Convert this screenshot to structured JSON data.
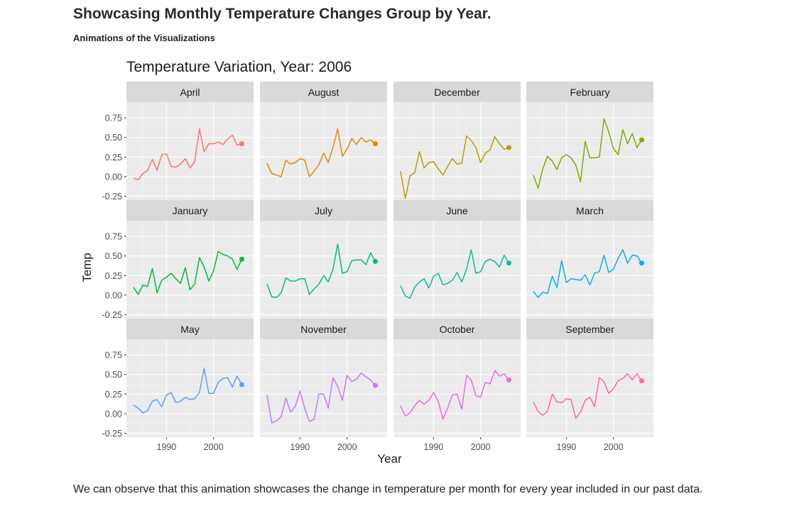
{
  "page": {
    "heading": "Showcasing Monthly Temperature Changes Group by Year.",
    "subheading": "Animations of the Visualizations",
    "footer": "We can observe that this animation showcases the change in temperature per month for every year included in our past data."
  },
  "chart_data": {
    "type": "line",
    "title": "Temperature Variation, Year: 2006",
    "xlabel": "Year",
    "ylabel": "Temp",
    "x_ticks": [
      1990,
      2000
    ],
    "y_ticks": [
      -0.25,
      0.0,
      0.25,
      0.5,
      0.75
    ],
    "y_tick_labels": [
      "-0.25",
      "0.00",
      "0.25",
      "0.50",
      "0.75"
    ],
    "xlim": [
      1981.5,
      2008.5
    ],
    "ylim": [
      -0.3,
      0.95
    ],
    "grid": true,
    "years": [
      1983,
      1984,
      1985,
      1986,
      1987,
      1988,
      1989,
      1990,
      1991,
      1992,
      1993,
      1994,
      1995,
      1996,
      1997,
      1998,
      1999,
      2000,
      2001,
      2002,
      2003,
      2004,
      2005,
      2006
    ],
    "series": [
      {
        "name": "April",
        "color": "#F8766D",
        "values": [
          -0.02,
          -0.04,
          0.04,
          0.08,
          0.22,
          0.08,
          0.28,
          0.29,
          0.13,
          0.12,
          0.16,
          0.23,
          0.11,
          0.19,
          0.61,
          0.32,
          0.42,
          0.42,
          0.44,
          0.41,
          0.48,
          0.53,
          0.4,
          0.42
        ]
      },
      {
        "name": "August",
        "color": "#DE8C00",
        "values": [
          0.17,
          0.04,
          0.02,
          0.0,
          0.21,
          0.16,
          0.18,
          0.23,
          0.21,
          0.0,
          0.07,
          0.15,
          0.3,
          0.18,
          0.37,
          0.61,
          0.26,
          0.35,
          0.49,
          0.41,
          0.5,
          0.44,
          0.47,
          0.42
        ]
      },
      {
        "name": "December",
        "color": "#B79F00",
        "values": [
          0.07,
          -0.28,
          0.01,
          0.05,
          0.32,
          0.11,
          0.18,
          0.19,
          0.1,
          0.02,
          0.13,
          0.23,
          0.16,
          0.17,
          0.52,
          0.46,
          0.37,
          0.18,
          0.3,
          0.34,
          0.51,
          0.42,
          0.35,
          0.37
        ]
      },
      {
        "name": "February",
        "color": "#7CAE00",
        "values": [
          0.02,
          -0.15,
          0.1,
          0.26,
          0.2,
          0.09,
          0.24,
          0.28,
          0.24,
          0.15,
          -0.07,
          0.45,
          0.24,
          0.24,
          0.25,
          0.74,
          0.57,
          0.36,
          0.28,
          0.6,
          0.42,
          0.55,
          0.37,
          0.47
        ]
      },
      {
        "name": "January",
        "color": "#00BA38",
        "values": [
          0.1,
          0.01,
          0.13,
          0.11,
          0.34,
          0.03,
          0.19,
          0.23,
          0.28,
          0.21,
          0.15,
          0.35,
          0.07,
          0.14,
          0.48,
          0.36,
          0.18,
          0.31,
          0.56,
          0.52,
          0.5,
          0.46,
          0.33,
          0.46
        ]
      },
      {
        "name": "July",
        "color": "#00BF7D",
        "values": [
          0.14,
          -0.02,
          -0.03,
          0.03,
          0.22,
          0.18,
          0.18,
          0.21,
          0.21,
          0.01,
          0.08,
          0.14,
          0.25,
          0.17,
          0.33,
          0.65,
          0.28,
          0.3,
          0.44,
          0.45,
          0.45,
          0.39,
          0.54,
          0.43
        ]
      },
      {
        "name": "June",
        "color": "#00C1A3",
        "values": [
          0.12,
          -0.01,
          -0.04,
          0.1,
          0.17,
          0.21,
          0.09,
          0.24,
          0.28,
          0.13,
          0.15,
          0.19,
          0.29,
          0.17,
          0.33,
          0.58,
          0.28,
          0.3,
          0.43,
          0.46,
          0.43,
          0.36,
          0.51,
          0.41
        ]
      },
      {
        "name": "March",
        "color": "#00B0F6",
        "values": [
          0.05,
          -0.03,
          0.04,
          0.02,
          0.24,
          0.1,
          0.44,
          0.16,
          0.21,
          0.2,
          0.19,
          0.26,
          0.13,
          0.28,
          0.3,
          0.51,
          0.29,
          0.33,
          0.47,
          0.58,
          0.41,
          0.51,
          0.5,
          0.41
        ]
      },
      {
        "name": "May",
        "color": "#619CFF",
        "values": [
          0.11,
          0.07,
          0.01,
          0.04,
          0.16,
          0.18,
          0.09,
          0.24,
          0.27,
          0.14,
          0.16,
          0.21,
          0.18,
          0.19,
          0.27,
          0.58,
          0.26,
          0.26,
          0.4,
          0.45,
          0.46,
          0.34,
          0.48,
          0.37
        ]
      },
      {
        "name": "November",
        "color": "#C77CFF",
        "values": [
          0.24,
          -0.12,
          -0.09,
          -0.04,
          0.2,
          0.02,
          0.09,
          0.29,
          0.07,
          -0.1,
          -0.07,
          0.25,
          0.25,
          0.07,
          0.46,
          0.35,
          0.17,
          0.49,
          0.41,
          0.44,
          0.52,
          0.47,
          0.43,
          0.36
        ]
      },
      {
        "name": "October",
        "color": "#F564E3",
        "values": [
          0.1,
          -0.03,
          0.01,
          0.1,
          0.17,
          0.12,
          0.17,
          0.27,
          0.16,
          -0.07,
          0.07,
          0.24,
          0.25,
          0.06,
          0.49,
          0.43,
          0.23,
          0.21,
          0.4,
          0.38,
          0.55,
          0.48,
          0.51,
          0.43
        ]
      },
      {
        "name": "September",
        "color": "#FF64B0",
        "values": [
          0.15,
          0.03,
          -0.02,
          0.03,
          0.25,
          0.15,
          0.14,
          0.19,
          0.18,
          -0.06,
          0.02,
          0.17,
          0.21,
          0.09,
          0.46,
          0.41,
          0.26,
          0.32,
          0.42,
          0.45,
          0.51,
          0.43,
          0.51,
          0.42
        ]
      }
    ]
  }
}
